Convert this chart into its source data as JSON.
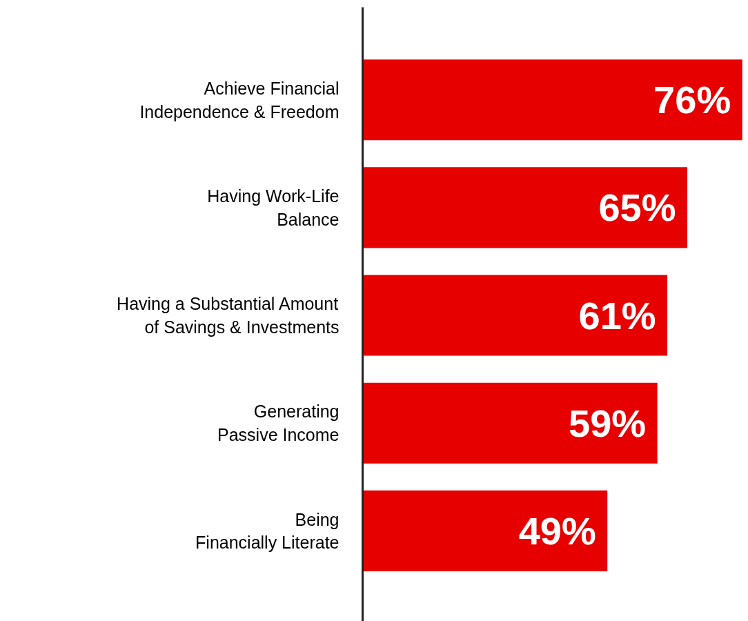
{
  "chart_data": {
    "type": "bar",
    "orientation": "horizontal",
    "categories": [
      "Achieve Financial\nIndependence & Freedom",
      "Having Work-Life\nBalance",
      "Having a Substantial Amount\nof Savings & Investments",
      "Generating\nPassive Income",
      "Being\nFinancially Literate"
    ],
    "values": [
      76,
      65,
      61,
      59,
      49
    ],
    "color": "#e60000",
    "value_labels": [
      "76%",
      "65%",
      "61%",
      "59%",
      "49%"
    ]
  }
}
